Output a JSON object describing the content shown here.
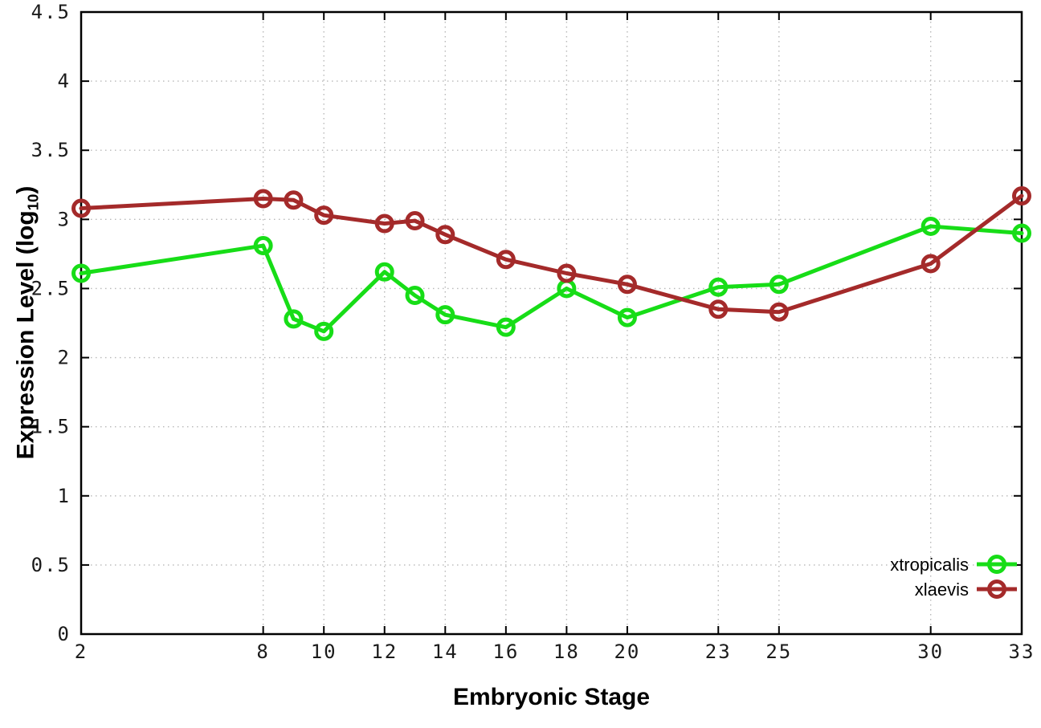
{
  "labels": {
    "xlabel": "Embryonic Stage",
    "ylabel_main": "Expression Level (log",
    "ylabel_sub": "10",
    "ylabel_close": ")"
  },
  "chart_data": {
    "type": "line",
    "title": "",
    "xlabel": "Embryonic Stage",
    "ylabel": "Expression Level (log10)",
    "x": [
      2,
      8,
      9,
      10,
      12,
      13,
      14,
      16,
      18,
      20,
      23,
      25,
      30,
      33
    ],
    "xticks": [
      2,
      8,
      10,
      12,
      14,
      16,
      18,
      20,
      23,
      25,
      30,
      33
    ],
    "yticks": [
      0,
      0.5,
      1,
      1.5,
      2,
      2.5,
      3,
      3.5,
      4,
      4.5
    ],
    "xlim": [
      2,
      33
    ],
    "ylim": [
      0,
      4.5
    ],
    "grid": true,
    "legend_position": "inside-bottom-right",
    "series": [
      {
        "name": "xtropicalis",
        "color": "#17dd17",
        "marker": "open-circle",
        "values": [
          2.61,
          2.81,
          2.28,
          2.19,
          2.62,
          2.45,
          2.31,
          2.22,
          2.5,
          2.29,
          2.51,
          2.53,
          2.95,
          2.9
        ]
      },
      {
        "name": "xlaevis",
        "color": "#a42a2a",
        "marker": "open-circle",
        "values": [
          3.08,
          3.15,
          3.14,
          3.03,
          2.97,
          2.99,
          2.89,
          2.71,
          2.61,
          2.53,
          2.35,
          2.33,
          2.68,
          3.17
        ]
      }
    ],
    "axis_color": "#000000",
    "grid_color": "#b8b8b8",
    "tick_label_color": "#1a1a1a"
  }
}
